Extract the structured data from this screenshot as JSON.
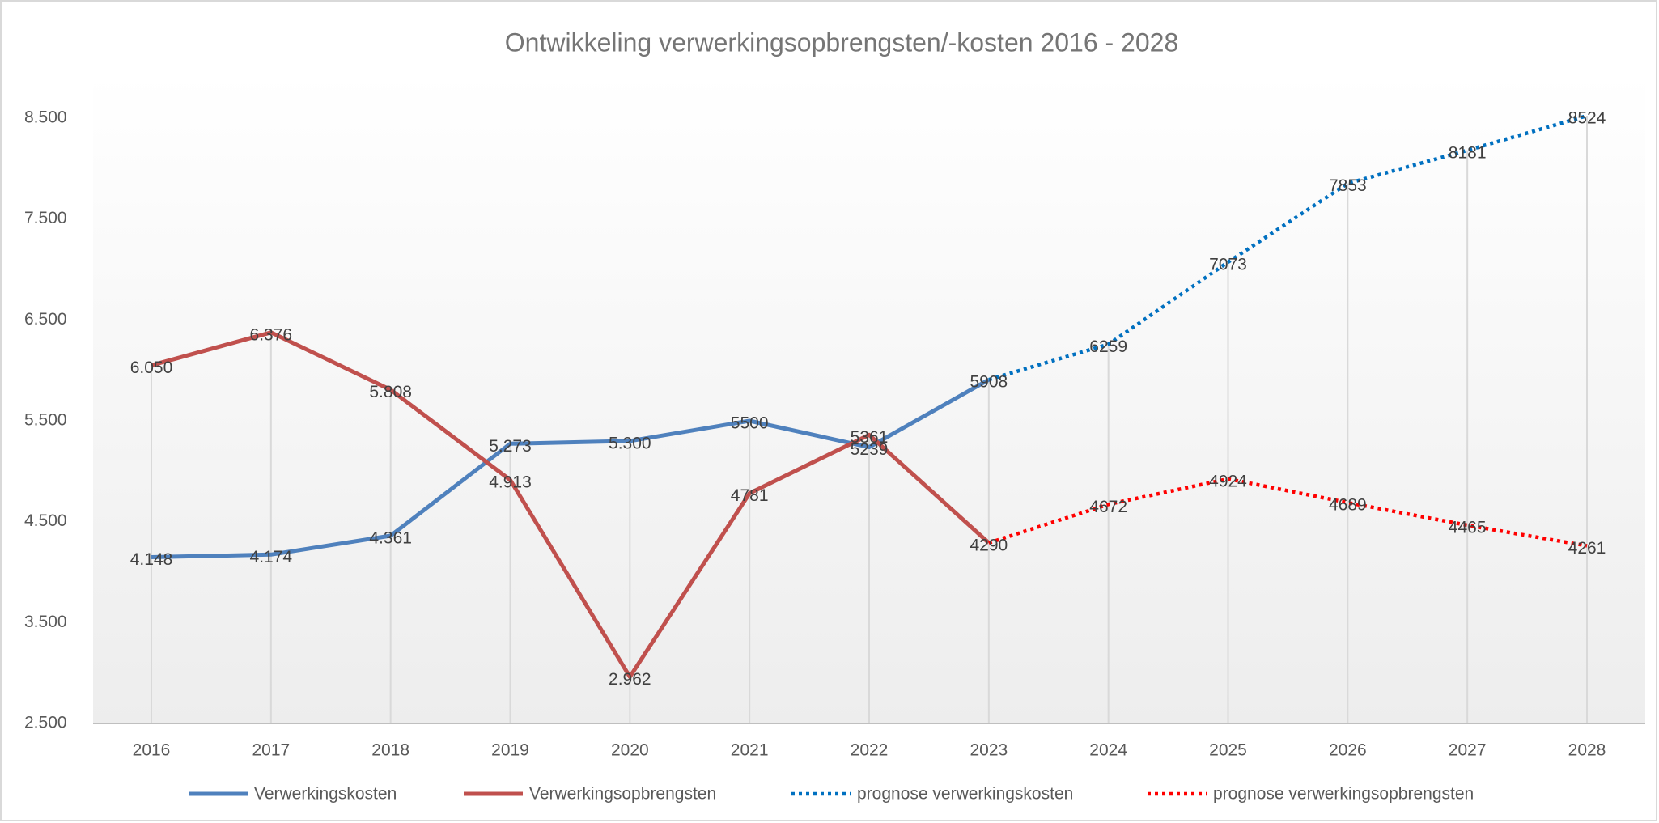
{
  "chart_data": {
    "type": "line",
    "title": "Ontwikkeling  verwerkingsopbrengsten/-kosten  2016 - 2028",
    "categories": [
      "2016",
      "2017",
      "2018",
      "2019",
      "2020",
      "2021",
      "2022",
      "2023",
      "2024",
      "2025",
      "2026",
      "2027",
      "2028"
    ],
    "series": [
      {
        "name": "Verwerkingskosten",
        "color": "#4f81bd",
        "style": "solid",
        "values": [
          4148,
          4174,
          4361,
          5273,
          5300,
          5500,
          5239,
          5908,
          null,
          null,
          null,
          null,
          null
        ],
        "value_labels": [
          "4.148",
          "4.174",
          "4.361",
          "5.273",
          "5.300",
          "5500",
          "5239",
          null,
          null,
          null,
          null,
          null,
          null
        ]
      },
      {
        "name": "Verwerkingsopbrengsten",
        "color": "#c0504d",
        "style": "solid",
        "values": [
          6050,
          6376,
          5808,
          4913,
          2962,
          4781,
          5361,
          4290,
          null,
          null,
          null,
          null,
          null
        ],
        "value_labels": [
          "6.050",
          "6.376",
          "5.808",
          "4.913",
          "2.962",
          "4781",
          "5361",
          null,
          null,
          null,
          null,
          null,
          null
        ]
      },
      {
        "name": "prognose verwerkingskosten",
        "color": "#0070c0",
        "style": "dotted",
        "values": [
          null,
          null,
          null,
          null,
          null,
          null,
          null,
          5908,
          6259,
          7073,
          7853,
          8181,
          8524
        ]
      },
      {
        "name": "prognose verwerkingsopbrengsten",
        "color": "#ff0000",
        "style": "dotted",
        "values": [
          null,
          null,
          null,
          null,
          null,
          null,
          null,
          4290,
          4672,
          4924,
          4689,
          4465,
          4261
        ]
      }
    ],
    "ylim": [
      2500,
      8500
    ],
    "yticks": [
      {
        "value": 2500,
        "label": "2.500"
      },
      {
        "value": 3500,
        "label": "3.500"
      },
      {
        "value": 4500,
        "label": "4.500"
      },
      {
        "value": 5500,
        "label": "5.500"
      },
      {
        "value": 6500,
        "label": "6.500"
      },
      {
        "value": 7500,
        "label": "7.500"
      },
      {
        "value": 8500,
        "label": "8.500"
      }
    ],
    "legend": "bottom"
  }
}
